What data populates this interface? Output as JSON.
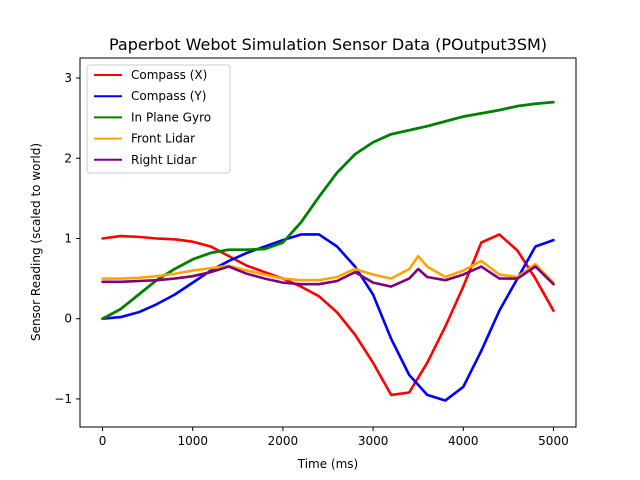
{
  "chart_data": {
    "type": "line",
    "title": "Paperbot Webot Simulation Sensor Data (POutput3SM)",
    "xlabel": "Time (ms)",
    "ylabel": "Sensor Reading (scaled to world)",
    "xlim": [
      -250,
      5250
    ],
    "ylim": [
      -1.35,
      3.25
    ],
    "xticks": [
      0,
      1000,
      2000,
      3000,
      4000,
      5000
    ],
    "yticks": [
      -1,
      0,
      1,
      2,
      3
    ],
    "ytick_labels": [
      "−1",
      "0",
      "1",
      "2",
      "3"
    ],
    "grid": false,
    "legend_position": "top-left",
    "series": [
      {
        "name": "Compass (X)",
        "color": "#ff0000",
        "x": [
          0,
          200,
          400,
          600,
          800,
          1000,
          1200,
          1400,
          1600,
          1800,
          2000,
          2200,
          2400,
          2600,
          2800,
          3000,
          3200,
          3400,
          3600,
          3800,
          4000,
          4200,
          4400,
          4600,
          4800,
          5000
        ],
        "y": [
          1.0,
          1.03,
          1.02,
          1.0,
          0.99,
          0.96,
          0.9,
          0.78,
          0.66,
          0.58,
          0.5,
          0.4,
          0.28,
          0.08,
          -0.2,
          -0.55,
          -0.95,
          -0.92,
          -0.55,
          -0.1,
          0.4,
          0.95,
          1.05,
          0.85,
          0.5,
          0.1
        ]
      },
      {
        "name": "Compass (Y)",
        "color": "#0000ff",
        "x": [
          0,
          200,
          400,
          600,
          800,
          1000,
          1200,
          1400,
          1600,
          1800,
          2000,
          2200,
          2400,
          2600,
          2800,
          3000,
          3200,
          3400,
          3600,
          3800,
          4000,
          4200,
          4400,
          4600,
          4800,
          5000
        ],
        "y": [
          0.0,
          0.02,
          0.08,
          0.18,
          0.3,
          0.45,
          0.6,
          0.72,
          0.82,
          0.9,
          0.98,
          1.05,
          1.05,
          0.9,
          0.65,
          0.3,
          -0.25,
          -0.7,
          -0.95,
          -1.02,
          -0.85,
          -0.4,
          0.1,
          0.5,
          0.9,
          0.98
        ]
      },
      {
        "name": "In Plane Gyro",
        "color": "#008000",
        "x": [
          0,
          200,
          400,
          600,
          800,
          1000,
          1200,
          1400,
          1600,
          1800,
          2000,
          2200,
          2400,
          2600,
          2800,
          3000,
          3200,
          3400,
          3600,
          3800,
          4000,
          4200,
          4400,
          4600,
          4800,
          5000
        ],
        "y": [
          0.0,
          0.12,
          0.3,
          0.48,
          0.62,
          0.74,
          0.82,
          0.86,
          0.86,
          0.87,
          0.95,
          1.2,
          1.52,
          1.82,
          2.05,
          2.2,
          2.3,
          2.35,
          2.4,
          2.46,
          2.52,
          2.56,
          2.6,
          2.65,
          2.68,
          2.7
        ]
      },
      {
        "name": "Front Lidar",
        "color": "#ffa500",
        "x": [
          0,
          200,
          400,
          600,
          800,
          1000,
          1200,
          1400,
          1600,
          1800,
          2000,
          2200,
          2400,
          2600,
          2800,
          3000,
          3200,
          3400,
          3500,
          3600,
          3800,
          4000,
          4200,
          4400,
          4600,
          4800,
          5000
        ],
        "y": [
          0.5,
          0.5,
          0.51,
          0.53,
          0.56,
          0.6,
          0.63,
          0.66,
          0.6,
          0.55,
          0.5,
          0.48,
          0.48,
          0.52,
          0.62,
          0.55,
          0.5,
          0.62,
          0.78,
          0.65,
          0.52,
          0.6,
          0.72,
          0.55,
          0.52,
          0.68,
          0.45
        ]
      },
      {
        "name": "Right Lidar",
        "color": "#800080",
        "x": [
          0,
          200,
          400,
          600,
          800,
          1000,
          1200,
          1400,
          1600,
          1800,
          2000,
          2200,
          2400,
          2600,
          2800,
          3000,
          3200,
          3400,
          3500,
          3600,
          3800,
          4000,
          4200,
          4400,
          4600,
          4800,
          5000
        ],
        "y": [
          0.46,
          0.46,
          0.47,
          0.48,
          0.5,
          0.53,
          0.58,
          0.65,
          0.56,
          0.5,
          0.45,
          0.43,
          0.43,
          0.47,
          0.58,
          0.45,
          0.4,
          0.5,
          0.62,
          0.52,
          0.48,
          0.55,
          0.65,
          0.5,
          0.5,
          0.65,
          0.43
        ]
      }
    ]
  }
}
